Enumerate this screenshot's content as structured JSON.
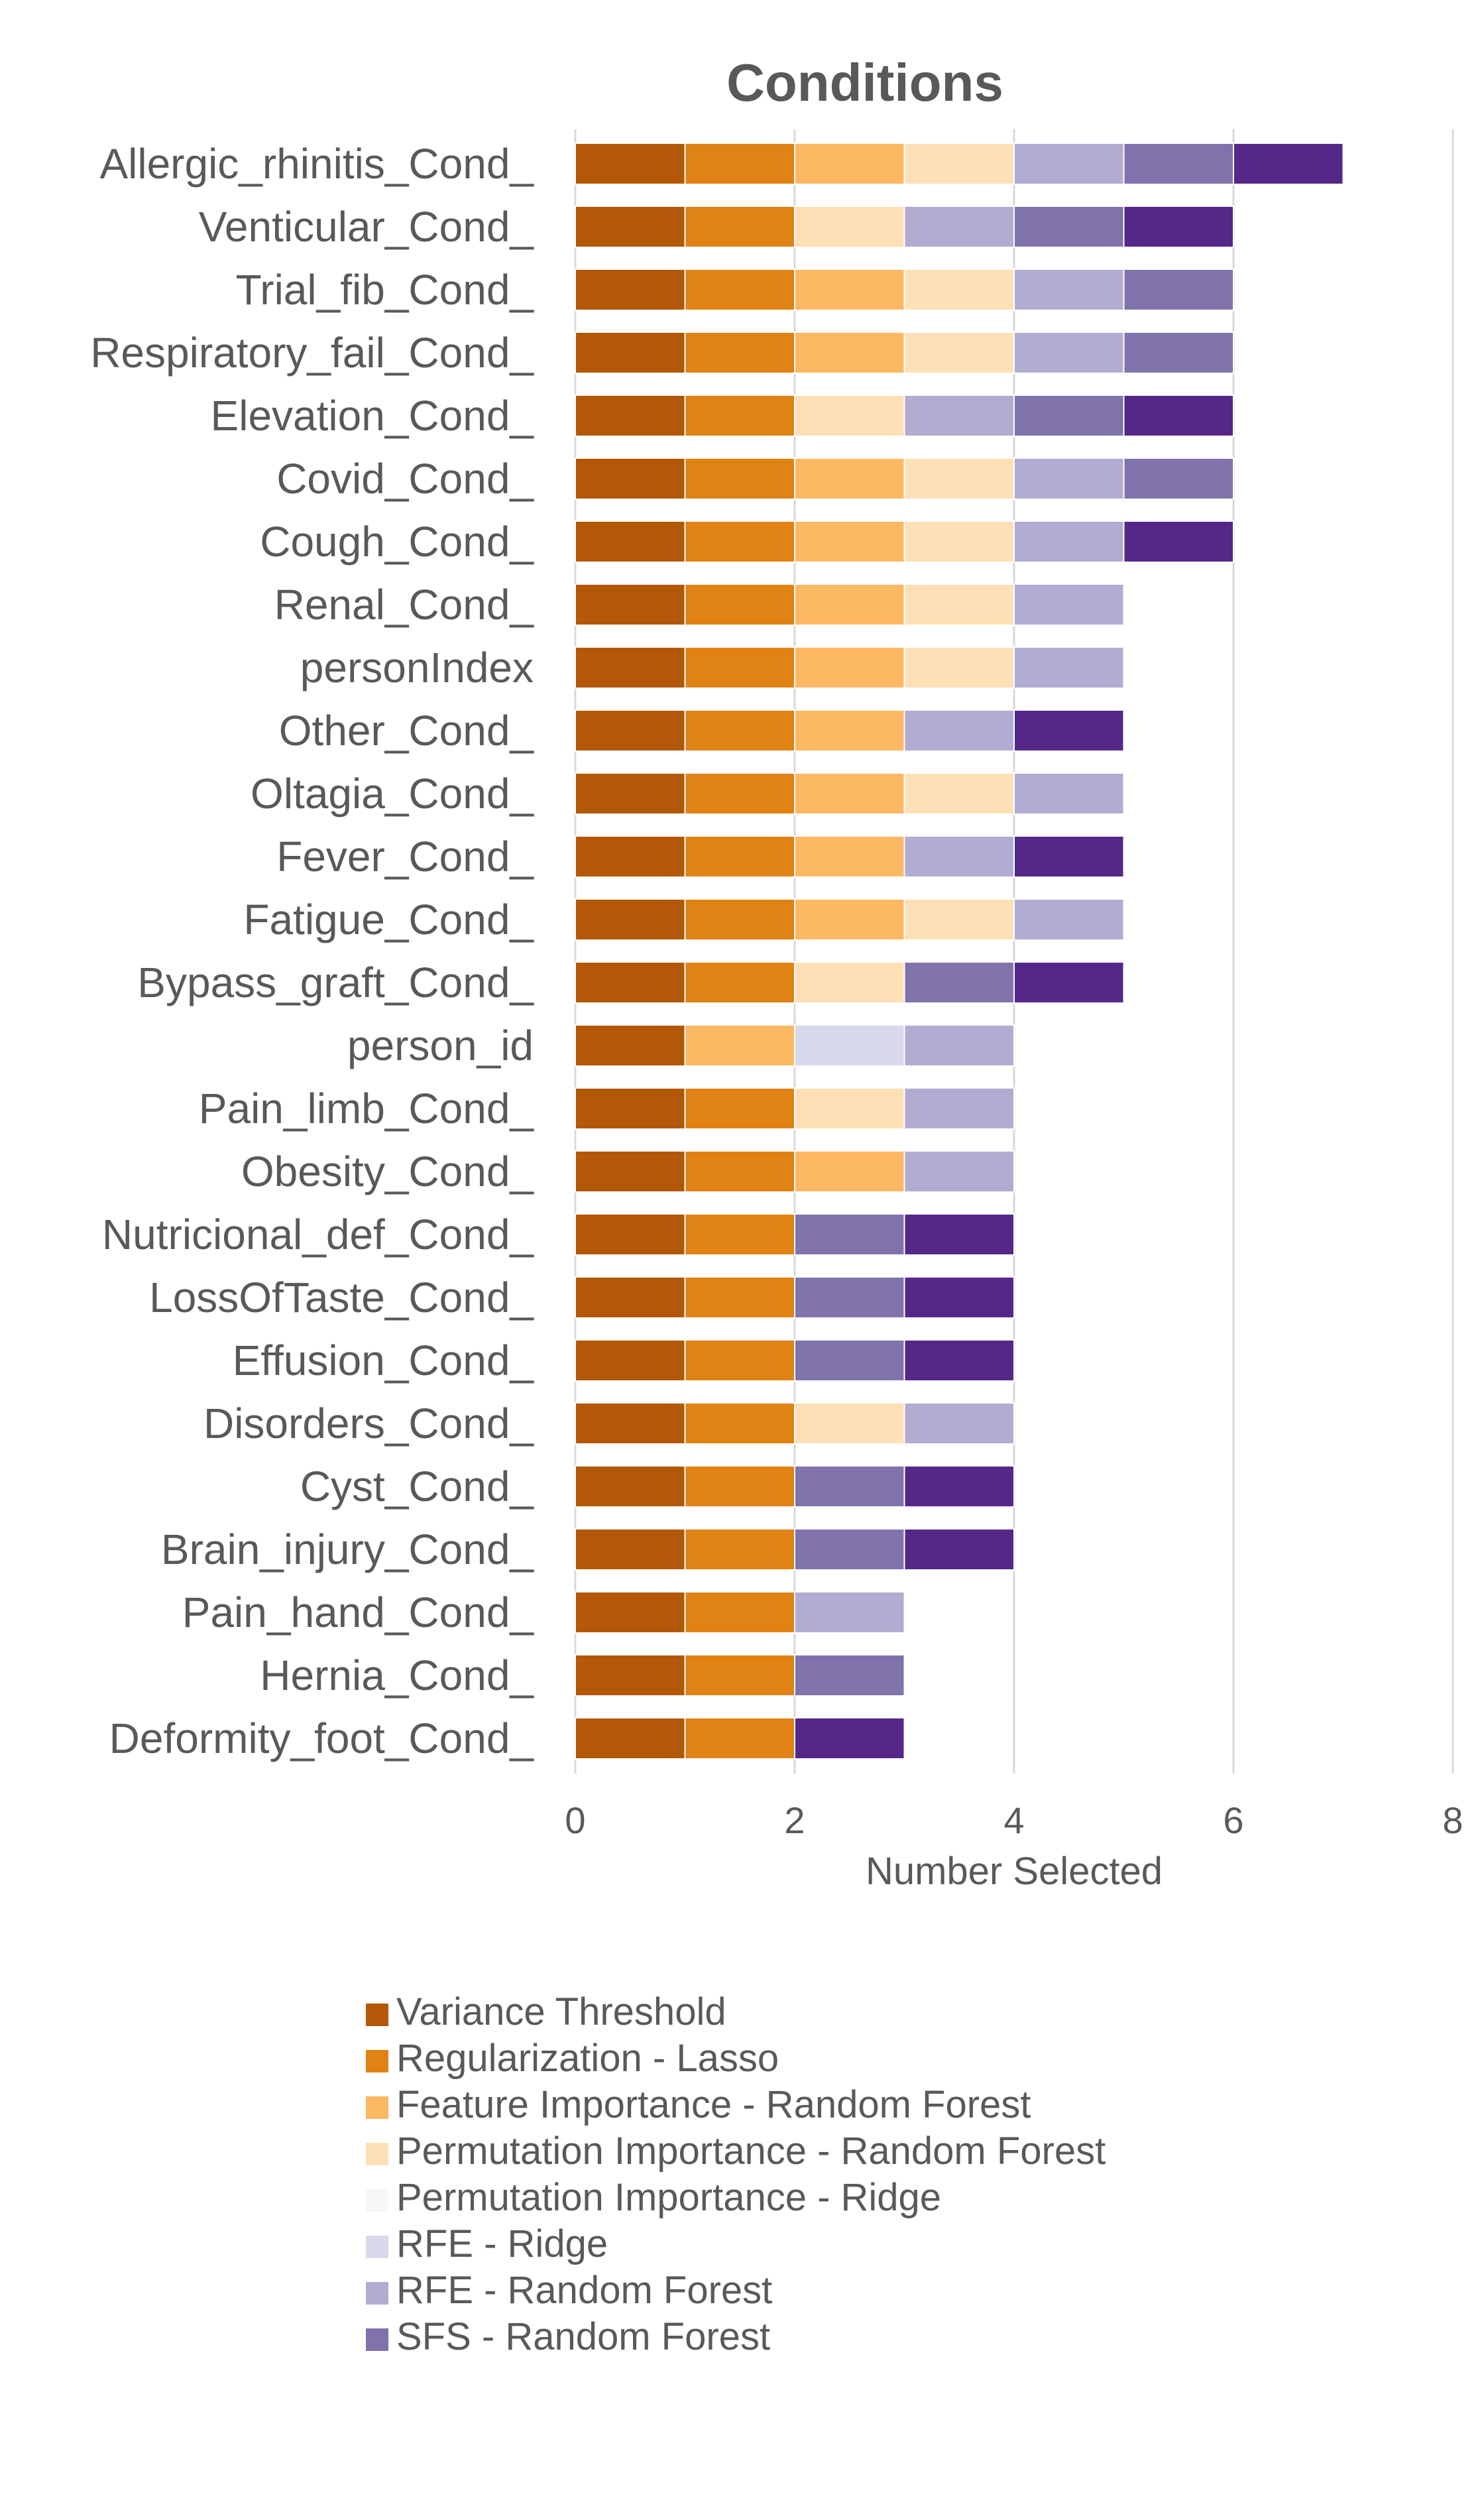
{
  "chart_data": {
    "type": "bar",
    "orientation": "horizontal",
    "stacked": true,
    "title": "Conditions",
    "xlabel": "Number Selected",
    "ylabel": "",
    "xlim": [
      0,
      8
    ],
    "x_ticks": [
      "0",
      "2",
      "4",
      "6",
      "8"
    ],
    "grid": "vertical",
    "legend_position": "bottom",
    "legend": [
      {
        "name": "Variance Threshold",
        "color": "#b35806"
      },
      {
        "name": "Regularization - Lasso",
        "color": "#e08214"
      },
      {
        "name": "Feature Importance - Random Forest",
        "color": "#fdb863"
      },
      {
        "name": "Permutation Importance - Random Forest",
        "color": "#fee0b6"
      },
      {
        "name": "Permutation Importance - Ridge",
        "color": "#f7f7f7"
      },
      {
        "name": "RFE - Ridge",
        "color": "#d8daeb"
      },
      {
        "name": "RFE - Random Forest",
        "color": "#b2abd2"
      },
      {
        "name": "SFS - Random Forest",
        "color": "#8073ac"
      }
    ],
    "extra_segment_color": "#542788",
    "categories": [
      "Allergic_rhinitis_Cond_",
      "Venticular_Cond_",
      "Trial_fib_Cond_",
      "Respiratory_fail_Cond_",
      "Elevation_Cond_",
      "Covid_Cond_",
      "Cough_Cond_",
      "Renal_Cond_",
      "personIndex",
      "Other_Cond_",
      "Oltagia_Cond_",
      "Fever_Cond_",
      "Fatigue_Cond_",
      "Bypass_graft_Cond_",
      "person_id",
      "Pain_limb_Cond_",
      "Obesity_Cond_",
      "Nutricional_def_Cond_",
      "LossOfTaste_Cond_",
      "Effusion_Cond_",
      "Disorders_Cond_",
      "Cyst_Cond_",
      "Brain_injury_Cond_",
      "Pain_hand_Cond_",
      "Hernia_Cond_",
      "Deformity_foot_Cond_"
    ],
    "totals": [
      7,
      6,
      6,
      6,
      6,
      6,
      6,
      5,
      5,
      5,
      5,
      5,
      5,
      5,
      4,
      4,
      4,
      4,
      4,
      4,
      4,
      4,
      4,
      3,
      3,
      3
    ],
    "segments": [
      [
        "#b35806",
        "#e08214",
        "#fdb863",
        "#fee0b6",
        "#b2abd2",
        "#8073ac",
        "#542788"
      ],
      [
        "#b35806",
        "#e08214",
        "#fee0b6",
        "#b2abd2",
        "#8073ac",
        "#542788"
      ],
      [
        "#b35806",
        "#e08214",
        "#fdb863",
        "#fee0b6",
        "#b2abd2",
        "#8073ac"
      ],
      [
        "#b35806",
        "#e08214",
        "#fdb863",
        "#fee0b6",
        "#b2abd2",
        "#8073ac"
      ],
      [
        "#b35806",
        "#e08214",
        "#fee0b6",
        "#b2abd2",
        "#8073ac",
        "#542788"
      ],
      [
        "#b35806",
        "#e08214",
        "#fdb863",
        "#fee0b6",
        "#b2abd2",
        "#8073ac"
      ],
      [
        "#b35806",
        "#e08214",
        "#fdb863",
        "#fee0b6",
        "#b2abd2",
        "#542788"
      ],
      [
        "#b35806",
        "#e08214",
        "#fdb863",
        "#fee0b6",
        "#b2abd2"
      ],
      [
        "#b35806",
        "#e08214",
        "#fdb863",
        "#fee0b6",
        "#b2abd2"
      ],
      [
        "#b35806",
        "#e08214",
        "#fdb863",
        "#b2abd2",
        "#542788"
      ],
      [
        "#b35806",
        "#e08214",
        "#fdb863",
        "#fee0b6",
        "#b2abd2"
      ],
      [
        "#b35806",
        "#e08214",
        "#fdb863",
        "#b2abd2",
        "#542788"
      ],
      [
        "#b35806",
        "#e08214",
        "#fdb863",
        "#fee0b6",
        "#b2abd2"
      ],
      [
        "#b35806",
        "#e08214",
        "#fee0b6",
        "#8073ac",
        "#542788"
      ],
      [
        "#b35806",
        "#fdb863",
        "#d8daeb",
        "#b2abd2"
      ],
      [
        "#b35806",
        "#e08214",
        "#fee0b6",
        "#b2abd2"
      ],
      [
        "#b35806",
        "#e08214",
        "#fdb863",
        "#b2abd2"
      ],
      [
        "#b35806",
        "#e08214",
        "#8073ac",
        "#542788"
      ],
      [
        "#b35806",
        "#e08214",
        "#8073ac",
        "#542788"
      ],
      [
        "#b35806",
        "#e08214",
        "#8073ac",
        "#542788"
      ],
      [
        "#b35806",
        "#e08214",
        "#fee0b6",
        "#b2abd2"
      ],
      [
        "#b35806",
        "#e08214",
        "#8073ac",
        "#542788"
      ],
      [
        "#b35806",
        "#e08214",
        "#8073ac",
        "#542788"
      ],
      [
        "#b35806",
        "#e08214",
        "#b2abd2"
      ],
      [
        "#b35806",
        "#e08214",
        "#8073ac"
      ],
      [
        "#b35806",
        "#e08214",
        "#542788"
      ]
    ]
  }
}
